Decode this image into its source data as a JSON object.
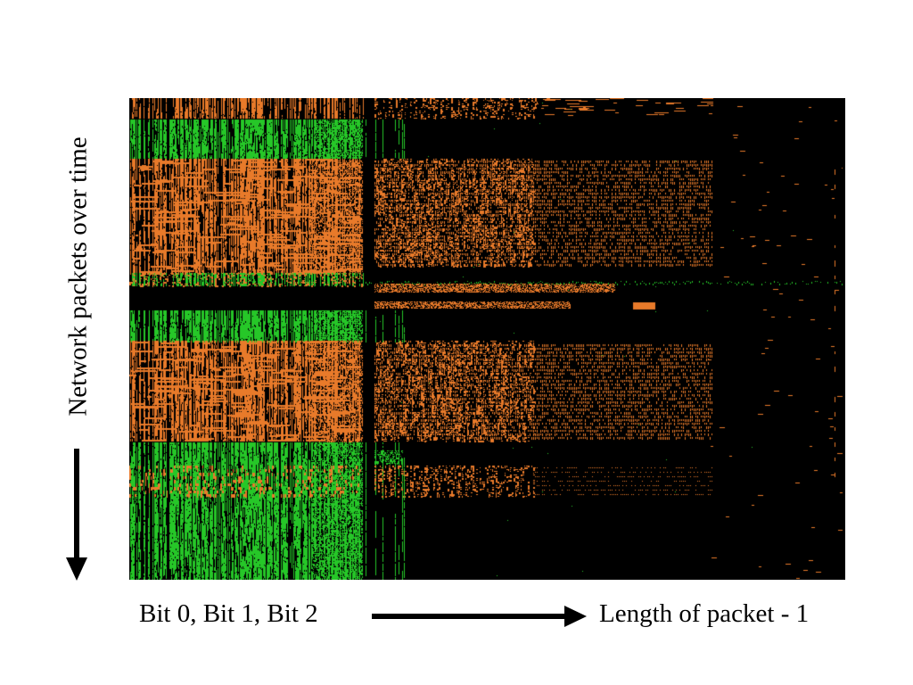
{
  "figure": {
    "y_axis_label": "Network packets over time",
    "x_axis_start_label": "Bit 0, Bit 1, Bit 2",
    "x_axis_end_label": "Length of packet - 1"
  },
  "colors": {
    "background": "#000000",
    "orange": "#E87A2A",
    "green": "#26C728",
    "text": "#000000",
    "page": "#FFFFFF"
  },
  "visual": {
    "columns": 803,
    "rows": 540
  }
}
